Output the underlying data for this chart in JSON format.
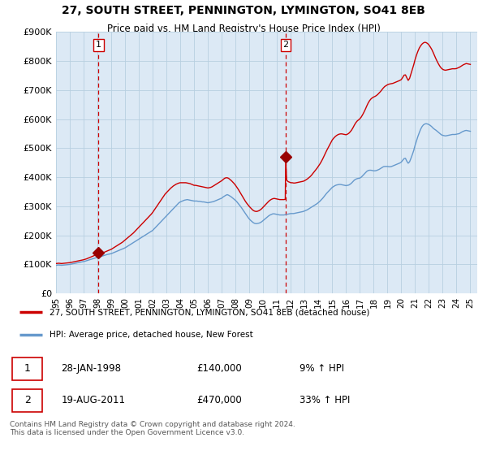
{
  "title": "27, SOUTH STREET, PENNINGTON, LYMINGTON, SO41 8EB",
  "subtitle": "Price paid vs. HM Land Registry's House Price Index (HPI)",
  "title_fontsize": 10,
  "subtitle_fontsize": 8.5,
  "ylabel_ticks": [
    "£0",
    "£100K",
    "£200K",
    "£300K",
    "£400K",
    "£500K",
    "£600K",
    "£700K",
    "£800K",
    "£900K"
  ],
  "ytick_values": [
    0,
    100000,
    200000,
    300000,
    400000,
    500000,
    600000,
    700000,
    800000,
    900000
  ],
  "ylim": [
    0,
    900000
  ],
  "xlim_start": 1995.0,
  "xlim_end": 2025.5,
  "purchase1": {
    "date_x": 1998.08,
    "price": 140000,
    "label": "1"
  },
  "purchase2": {
    "date_x": 2011.63,
    "price": 470000,
    "label": "2"
  },
  "legend_line1": "27, SOUTH STREET, PENNINGTON, LYMINGTON, SO41 8EB (detached house)",
  "legend_line2": "HPI: Average price, detached house, New Forest",
  "annotation1_date": "28-JAN-1998",
  "annotation1_price": "£140,000",
  "annotation1_hpi": "9% ↑ HPI",
  "annotation2_date": "19-AUG-2011",
  "annotation2_price": "£470,000",
  "annotation2_hpi": "33% ↑ HPI",
  "footer": "Contains HM Land Registry data © Crown copyright and database right 2024.\nThis data is licensed under the Open Government Licence v3.0.",
  "line_color_red": "#cc0000",
  "line_color_blue": "#6699cc",
  "vline_color": "#cc0000",
  "marker_color": "#990000",
  "chart_bg": "#dce9f5",
  "background_color": "#ffffff",
  "grid_color": "#b8cfe0",
  "hpi_x": [
    1995.0,
    1995.1,
    1995.2,
    1995.3,
    1995.4,
    1995.5,
    1995.6,
    1995.7,
    1995.8,
    1995.9,
    1996.0,
    1996.1,
    1996.2,
    1996.3,
    1996.4,
    1996.5,
    1996.6,
    1996.7,
    1996.8,
    1996.9,
    1997.0,
    1997.1,
    1997.2,
    1997.3,
    1997.4,
    1997.5,
    1997.6,
    1997.7,
    1997.8,
    1997.9,
    1998.0,
    1998.1,
    1998.2,
    1998.3,
    1998.4,
    1998.5,
    1998.6,
    1998.7,
    1998.8,
    1998.9,
    1999.0,
    1999.1,
    1999.2,
    1999.3,
    1999.4,
    1999.5,
    1999.6,
    1999.7,
    1999.8,
    1999.9,
    2000.0,
    2000.1,
    2000.2,
    2000.3,
    2000.4,
    2000.5,
    2000.6,
    2000.7,
    2000.8,
    2000.9,
    2001.0,
    2001.1,
    2001.2,
    2001.3,
    2001.4,
    2001.5,
    2001.6,
    2001.7,
    2001.8,
    2001.9,
    2002.0,
    2002.1,
    2002.2,
    2002.3,
    2002.4,
    2002.5,
    2002.6,
    2002.7,
    2002.8,
    2002.9,
    2003.0,
    2003.1,
    2003.2,
    2003.3,
    2003.4,
    2003.5,
    2003.6,
    2003.7,
    2003.8,
    2003.9,
    2004.0,
    2004.1,
    2004.2,
    2004.3,
    2004.4,
    2004.5,
    2004.6,
    2004.7,
    2004.8,
    2004.9,
    2005.0,
    2005.1,
    2005.2,
    2005.3,
    2005.4,
    2005.5,
    2005.6,
    2005.7,
    2005.8,
    2005.9,
    2006.0,
    2006.1,
    2006.2,
    2006.3,
    2006.4,
    2006.5,
    2006.6,
    2006.7,
    2006.8,
    2006.9,
    2007.0,
    2007.1,
    2007.2,
    2007.3,
    2007.4,
    2007.5,
    2007.6,
    2007.7,
    2007.8,
    2007.9,
    2008.0,
    2008.1,
    2008.2,
    2008.3,
    2008.4,
    2008.5,
    2008.6,
    2008.7,
    2008.8,
    2008.9,
    2009.0,
    2009.1,
    2009.2,
    2009.3,
    2009.4,
    2009.5,
    2009.6,
    2009.7,
    2009.8,
    2009.9,
    2010.0,
    2010.1,
    2010.2,
    2010.3,
    2010.4,
    2010.5,
    2010.6,
    2010.7,
    2010.8,
    2010.9,
    2011.0,
    2011.1,
    2011.2,
    2011.3,
    2011.4,
    2011.5,
    2011.6,
    2011.7,
    2011.8,
    2011.9,
    2012.0,
    2012.1,
    2012.2,
    2012.3,
    2012.4,
    2012.5,
    2012.6,
    2012.7,
    2012.8,
    2012.9,
    2013.0,
    2013.1,
    2013.2,
    2013.3,
    2013.4,
    2013.5,
    2013.6,
    2013.7,
    2013.8,
    2013.9,
    2014.0,
    2014.1,
    2014.2,
    2014.3,
    2014.4,
    2014.5,
    2014.6,
    2014.7,
    2014.8,
    2014.9,
    2015.0,
    2015.1,
    2015.2,
    2015.3,
    2015.4,
    2015.5,
    2015.6,
    2015.7,
    2015.8,
    2015.9,
    2016.0,
    2016.1,
    2016.2,
    2016.3,
    2016.4,
    2016.5,
    2016.6,
    2016.7,
    2016.8,
    2016.9,
    2017.0,
    2017.1,
    2017.2,
    2017.3,
    2017.4,
    2017.5,
    2017.6,
    2017.7,
    2017.8,
    2017.9,
    2018.0,
    2018.1,
    2018.2,
    2018.3,
    2018.4,
    2018.5,
    2018.6,
    2018.7,
    2018.8,
    2018.9,
    2019.0,
    2019.1,
    2019.2,
    2019.3,
    2019.4,
    2019.5,
    2019.6,
    2019.7,
    2019.8,
    2019.9,
    2020.0,
    2020.1,
    2020.2,
    2020.3,
    2020.4,
    2020.5,
    2020.6,
    2020.7,
    2020.8,
    2020.9,
    2021.0,
    2021.1,
    2021.2,
    2021.3,
    2021.4,
    2021.5,
    2021.6,
    2021.7,
    2021.8,
    2021.9,
    2022.0,
    2022.1,
    2022.2,
    2022.3,
    2022.4,
    2022.5,
    2022.6,
    2022.7,
    2022.8,
    2022.9,
    2023.0,
    2023.1,
    2023.2,
    2023.3,
    2023.4,
    2023.5,
    2023.6,
    2023.7,
    2023.8,
    2023.9,
    2024.0,
    2024.1,
    2024.2,
    2024.3,
    2024.4,
    2024.5,
    2024.6,
    2024.7,
    2024.8,
    2024.9,
    2025.0
  ],
  "hpi_y": [
    97000,
    97500,
    98000,
    97500,
    97000,
    97500,
    98000,
    98500,
    99000,
    99500,
    100000,
    101000,
    102000,
    103000,
    104000,
    105000,
    106000,
    107000,
    108000,
    109000,
    110000,
    111000,
    112500,
    114000,
    115500,
    117000,
    118500,
    120000,
    121500,
    123000,
    124000,
    125000,
    126500,
    128000,
    129500,
    131000,
    132500,
    134000,
    135000,
    136000,
    137000,
    139000,
    141000,
    143000,
    145000,
    147000,
    149000,
    151000,
    153000,
    155000,
    157000,
    160000,
    163000,
    166000,
    169000,
    172000,
    175000,
    178000,
    181000,
    184000,
    187000,
    190000,
    193000,
    196000,
    199000,
    202000,
    205000,
    208000,
    211000,
    214000,
    217000,
    222000,
    227000,
    232000,
    237000,
    242000,
    247000,
    252000,
    257000,
    262000,
    267000,
    272000,
    277000,
    282000,
    287000,
    292000,
    297000,
    302000,
    307000,
    312000,
    315000,
    317000,
    319000,
    321000,
    322000,
    323000,
    322000,
    321000,
    320000,
    319000,
    318000,
    318000,
    318000,
    317000,
    317000,
    316000,
    315000,
    315000,
    314000,
    313000,
    312000,
    313000,
    314000,
    315000,
    316000,
    318000,
    320000,
    322000,
    324000,
    326000,
    328000,
    332000,
    335000,
    338000,
    340000,
    338000,
    335000,
    332000,
    328000,
    324000,
    320000,
    315000,
    309000,
    303000,
    297000,
    290000,
    283000,
    276000,
    269000,
    262000,
    256000,
    251000,
    247000,
    243000,
    241000,
    240000,
    241000,
    242000,
    244000,
    247000,
    251000,
    255000,
    259000,
    263000,
    267000,
    270000,
    272000,
    274000,
    274000,
    273000,
    272000,
    271000,
    270000,
    270000,
    270000,
    270000,
    271000,
    272000,
    273000,
    274000,
    275000,
    275000,
    275000,
    276000,
    277000,
    278000,
    279000,
    280000,
    281000,
    282000,
    284000,
    286000,
    288000,
    291000,
    294000,
    297000,
    300000,
    303000,
    306000,
    309000,
    313000,
    317000,
    322000,
    327000,
    333000,
    339000,
    345000,
    350000,
    355000,
    360000,
    365000,
    368000,
    371000,
    373000,
    374000,
    375000,
    375000,
    374000,
    373000,
    372000,
    371000,
    372000,
    373000,
    376000,
    380000,
    385000,
    390000,
    393000,
    395000,
    396000,
    397000,
    400000,
    405000,
    410000,
    415000,
    420000,
    423000,
    424000,
    424000,
    423000,
    422000,
    422000,
    423000,
    425000,
    427000,
    430000,
    433000,
    436000,
    437000,
    437000,
    437000,
    436000,
    436000,
    437000,
    439000,
    441000,
    443000,
    445000,
    447000,
    449000,
    452000,
    458000,
    464000,
    465000,
    455000,
    448000,
    453000,
    465000,
    478000,
    492000,
    510000,
    525000,
    540000,
    553000,
    565000,
    574000,
    580000,
    583000,
    584000,
    583000,
    581000,
    578000,
    574000,
    569000,
    565000,
    562000,
    558000,
    554000,
    550000,
    546000,
    544000,
    543000,
    542000,
    543000,
    544000,
    545000,
    546000,
    547000,
    547000,
    547000,
    548000,
    549000,
    550000,
    553000,
    556000,
    558000,
    560000,
    561000,
    560000,
    559000,
    558000
  ],
  "price_x": [
    1995.0,
    1995.1,
    1995.2,
    1995.3,
    1995.4,
    1995.5,
    1995.6,
    1995.7,
    1995.8,
    1995.9,
    1996.0,
    1996.1,
    1996.2,
    1996.3,
    1996.4,
    1996.5,
    1996.6,
    1996.7,
    1996.8,
    1996.9,
    1997.0,
    1997.1,
    1997.2,
    1997.3,
    1997.4,
    1997.5,
    1997.6,
    1997.7,
    1997.8,
    1997.9,
    1998.0,
    1998.08,
    1998.2,
    1998.3,
    1998.4,
    1998.5,
    1998.6,
    1998.7,
    1998.8,
    1998.9,
    1999.0,
    1999.1,
    1999.2,
    1999.3,
    1999.4,
    1999.5,
    1999.6,
    1999.7,
    1999.8,
    1999.9,
    2000.0,
    2000.1,
    2000.2,
    2000.3,
    2000.4,
    2000.5,
    2000.6,
    2000.7,
    2000.8,
    2000.9,
    2001.0,
    2001.1,
    2001.2,
    2001.3,
    2001.4,
    2001.5,
    2001.6,
    2001.7,
    2001.8,
    2001.9,
    2002.0,
    2002.1,
    2002.2,
    2002.3,
    2002.4,
    2002.5,
    2002.6,
    2002.7,
    2002.8,
    2002.9,
    2003.0,
    2003.1,
    2003.2,
    2003.3,
    2003.4,
    2003.5,
    2003.6,
    2003.7,
    2003.8,
    2003.9,
    2004.0,
    2004.1,
    2004.2,
    2004.3,
    2004.4,
    2004.5,
    2004.6,
    2004.7,
    2004.8,
    2004.9,
    2005.0,
    2005.1,
    2005.2,
    2005.3,
    2005.4,
    2005.5,
    2005.6,
    2005.7,
    2005.8,
    2005.9,
    2006.0,
    2006.1,
    2006.2,
    2006.3,
    2006.4,
    2006.5,
    2006.6,
    2006.7,
    2006.8,
    2006.9,
    2007.0,
    2007.1,
    2007.2,
    2007.3,
    2007.4,
    2007.5,
    2007.6,
    2007.7,
    2007.8,
    2007.9,
    2008.0,
    2008.1,
    2008.2,
    2008.3,
    2008.4,
    2008.5,
    2008.6,
    2008.7,
    2008.8,
    2008.9,
    2009.0,
    2009.1,
    2009.2,
    2009.3,
    2009.4,
    2009.5,
    2009.6,
    2009.7,
    2009.8,
    2009.9,
    2010.0,
    2010.1,
    2010.2,
    2010.3,
    2010.4,
    2010.5,
    2010.6,
    2010.7,
    2010.8,
    2010.9,
    2011.0,
    2011.1,
    2011.2,
    2011.3,
    2011.4,
    2011.5,
    2011.6,
    2011.63,
    2011.7,
    2011.8,
    2011.9,
    2012.0,
    2012.1,
    2012.2,
    2012.3,
    2012.4,
    2012.5,
    2012.6,
    2012.7,
    2012.8,
    2012.9,
    2013.0,
    2013.1,
    2013.2,
    2013.3,
    2013.4,
    2013.5,
    2013.6,
    2013.7,
    2013.8,
    2013.9,
    2014.0,
    2014.1,
    2014.2,
    2014.3,
    2014.4,
    2014.5,
    2014.6,
    2014.7,
    2014.8,
    2014.9,
    2015.0,
    2015.1,
    2015.2,
    2015.3,
    2015.4,
    2015.5,
    2015.6,
    2015.7,
    2015.8,
    2015.9,
    2016.0,
    2016.1,
    2016.2,
    2016.3,
    2016.4,
    2016.5,
    2016.6,
    2016.7,
    2016.8,
    2016.9,
    2017.0,
    2017.1,
    2017.2,
    2017.3,
    2017.4,
    2017.5,
    2017.6,
    2017.7,
    2017.8,
    2017.9,
    2018.0,
    2018.1,
    2018.2,
    2018.3,
    2018.4,
    2018.5,
    2018.6,
    2018.7,
    2018.8,
    2018.9,
    2019.0,
    2019.1,
    2019.2,
    2019.3,
    2019.4,
    2019.5,
    2019.6,
    2019.7,
    2019.8,
    2019.9,
    2020.0,
    2020.1,
    2020.2,
    2020.3,
    2020.4,
    2020.5,
    2020.6,
    2020.7,
    2020.8,
    2020.9,
    2021.0,
    2021.1,
    2021.2,
    2021.3,
    2021.4,
    2021.5,
    2021.6,
    2021.7,
    2021.8,
    2021.9,
    2022.0,
    2022.1,
    2022.2,
    2022.3,
    2022.4,
    2022.5,
    2022.6,
    2022.7,
    2022.8,
    2022.9,
    2023.0,
    2023.1,
    2023.2,
    2023.3,
    2023.4,
    2023.5,
    2023.6,
    2023.7,
    2023.8,
    2023.9,
    2024.0,
    2024.1,
    2024.2,
    2024.3,
    2024.4,
    2024.5,
    2024.6,
    2024.7,
    2024.8,
    2024.9,
    2025.0
  ],
  "price_y": [
    103000,
    103500,
    104000,
    103500,
    103000,
    103500,
    104000,
    104500,
    105000,
    105500,
    106000,
    107000,
    108000,
    109000,
    110000,
    111000,
    112000,
    113000,
    114000,
    115000,
    116000,
    117500,
    119000,
    121000,
    123000,
    125000,
    127000,
    129000,
    131000,
    133000,
    134000,
    140000,
    137000,
    138500,
    140000,
    142000,
    144000,
    146000,
    148000,
    150000,
    152000,
    155000,
    158000,
    161000,
    164000,
    167000,
    170000,
    173000,
    176000,
    180000,
    184000,
    188000,
    192000,
    196000,
    200000,
    204000,
    208000,
    213000,
    218000,
    223000,
    228000,
    233000,
    238000,
    243000,
    248000,
    253000,
    258000,
    263000,
    268000,
    273000,
    279000,
    286000,
    293000,
    300000,
    307000,
    314000,
    321000,
    328000,
    335000,
    342000,
    347000,
    352000,
    357000,
    362000,
    366000,
    370000,
    373000,
    376000,
    378000,
    380000,
    381000,
    381000,
    381000,
    381000,
    381000,
    380000,
    379000,
    378000,
    376000,
    374000,
    372000,
    372000,
    371000,
    370000,
    369000,
    368000,
    367000,
    366000,
    365000,
    364000,
    363000,
    364000,
    365000,
    367000,
    370000,
    373000,
    376000,
    379000,
    382000,
    385000,
    388000,
    392000,
    396000,
    398000,
    398000,
    396000,
    392000,
    388000,
    383000,
    378000,
    372000,
    365000,
    358000,
    350000,
    342000,
    334000,
    326000,
    318000,
    311000,
    305000,
    299000,
    294000,
    289000,
    285000,
    283000,
    282000,
    283000,
    285000,
    288000,
    292000,
    297000,
    302000,
    307000,
    312000,
    317000,
    321000,
    324000,
    326000,
    327000,
    326000,
    325000,
    324000,
    323000,
    323000,
    323000,
    323000,
    324000,
    470000,
    390000,
    385000,
    383000,
    381000,
    381000,
    380000,
    380000,
    381000,
    382000,
    383000,
    384000,
    385000,
    386000,
    388000,
    391000,
    394000,
    398000,
    402000,
    407000,
    413000,
    419000,
    425000,
    431000,
    438000,
    445000,
    453000,
    462000,
    472000,
    482000,
    492000,
    501000,
    510000,
    519000,
    528000,
    534000,
    539000,
    543000,
    546000,
    548000,
    549000,
    549000,
    548000,
    547000,
    546000,
    548000,
    551000,
    556000,
    562000,
    570000,
    579000,
    587000,
    593000,
    597000,
    601000,
    607000,
    615000,
    624000,
    634000,
    645000,
    655000,
    663000,
    669000,
    673000,
    676000,
    678000,
    681000,
    685000,
    690000,
    695000,
    701000,
    707000,
    712000,
    715000,
    718000,
    720000,
    721000,
    722000,
    723000,
    725000,
    727000,
    729000,
    731000,
    733000,
    736000,
    743000,
    751000,
    752000,
    742000,
    733000,
    740000,
    755000,
    771000,
    787000,
    805000,
    820000,
    833000,
    844000,
    852000,
    858000,
    862000,
    864000,
    863000,
    860000,
    855000,
    848000,
    840000,
    830000,
    819000,
    808000,
    798000,
    789000,
    781000,
    775000,
    771000,
    769000,
    768000,
    769000,
    770000,
    771000,
    772000,
    773000,
    773000,
    773000,
    774000,
    776000,
    778000,
    781000,
    784000,
    787000,
    789000,
    791000,
    790000,
    789000,
    788000
  ]
}
